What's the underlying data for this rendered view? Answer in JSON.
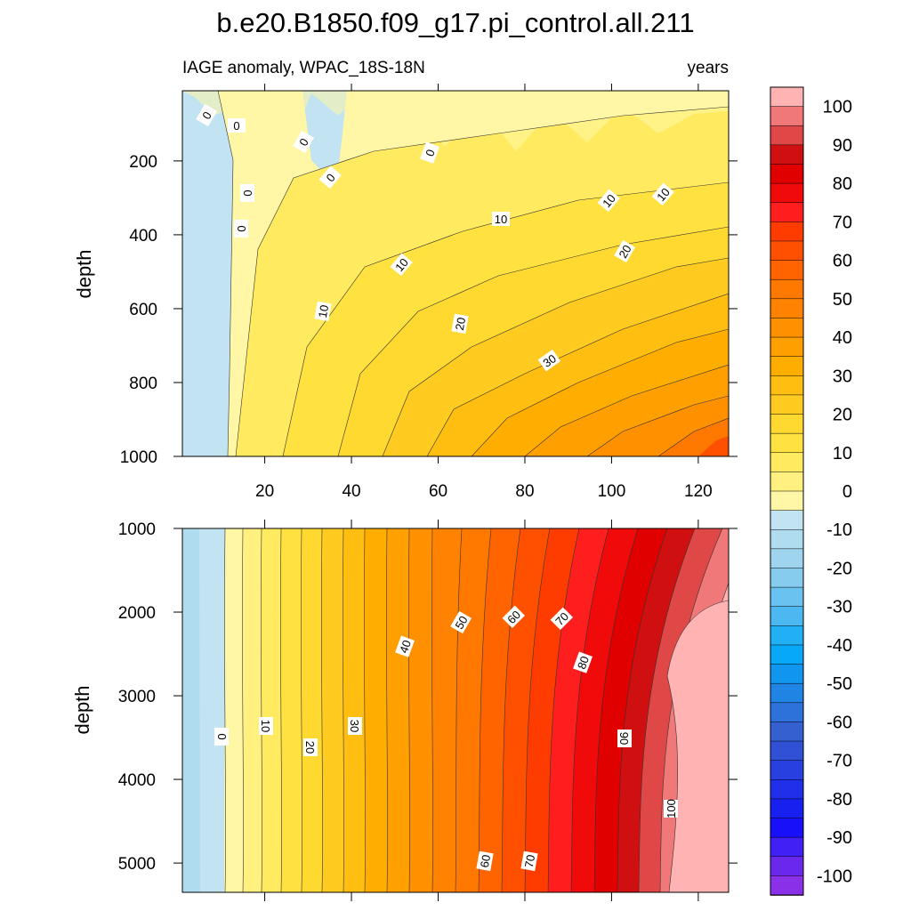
{
  "page_title": "b.e20.B1850.f09_g17.pi_control.all.211",
  "subtitle_left": "IAGE anomaly, WPAC_18S-18N",
  "subtitle_right": "years",
  "chart_data": [
    {
      "type": "contour",
      "panel": "upper",
      "ylabel": "depth",
      "xlabel": "",
      "xlim": [
        1,
        127
      ],
      "ylim": [
        1000,
        10
      ],
      "x_ticks": [
        "20",
        "40",
        "60",
        "80",
        "100",
        "120"
      ],
      "x_tick_values": [
        20,
        40,
        60,
        80,
        100,
        120
      ],
      "y_ticks": [
        "200",
        "400",
        "600",
        "800",
        "1000"
      ],
      "y_tick_values": [
        200,
        400,
        600,
        800,
        1000
      ],
      "contour_labels": [
        "0",
        "0",
        "0",
        "0",
        "0",
        "0",
        "0",
        "10",
        "10",
        "10",
        "10",
        "10",
        "20",
        "20",
        "30"
      ]
    },
    {
      "type": "contour",
      "panel": "lower",
      "ylabel": "depth",
      "xlabel": "",
      "xlim": [
        1,
        127
      ],
      "ylim": [
        5350,
        1000
      ],
      "x_tick_values": [
        20,
        40,
        60,
        80,
        100,
        120
      ],
      "y_ticks": [
        "1000",
        "2000",
        "3000",
        "4000",
        "5000"
      ],
      "y_tick_values": [
        1000,
        2000,
        3000,
        4000,
        5000
      ],
      "contour_labels": [
        "0",
        "10",
        "20",
        "30",
        "40",
        "50",
        "60",
        "70",
        "80",
        "90",
        "100",
        "60",
        "70"
      ]
    }
  ],
  "colorbar": {
    "labels": [
      "100",
      "90",
      "80",
      "70",
      "60",
      "50",
      "40",
      "30",
      "20",
      "10",
      "0",
      "-10",
      "-20",
      "-30",
      "-40",
      "-50",
      "-60",
      "-70",
      "-80",
      "-90",
      "-100"
    ],
    "colors": [
      "#FFB3B3",
      "#F07878",
      "#E04848",
      "#D01010",
      "#E00000",
      "#F00A0A",
      "#FF1E1E",
      "#FF3C00",
      "#FF5000",
      "#FF6400",
      "#FF7800",
      "#FF8200",
      "#FF9000",
      "#FFA000",
      "#FFAE00",
      "#FFBE10",
      "#FFCB20",
      "#FFD830",
      "#FFE240",
      "#FFEA60",
      "#FFF080",
      "#FFF7A6",
      "#C2E3F2",
      "#B0DCF0",
      "#9ED4EE",
      "#86CCEE",
      "#6AC2F0",
      "#4CB8F2",
      "#22B0F5",
      "#08A8F8",
      "#1096EE",
      "#2084E4",
      "#2C72DA",
      "#3460D0",
      "#3050D6",
      "#2840E0",
      "#2030EA",
      "#1820F0",
      "#1810F8",
      "#4020F4",
      "#6A28EC",
      "#8A30E8"
    ]
  }
}
